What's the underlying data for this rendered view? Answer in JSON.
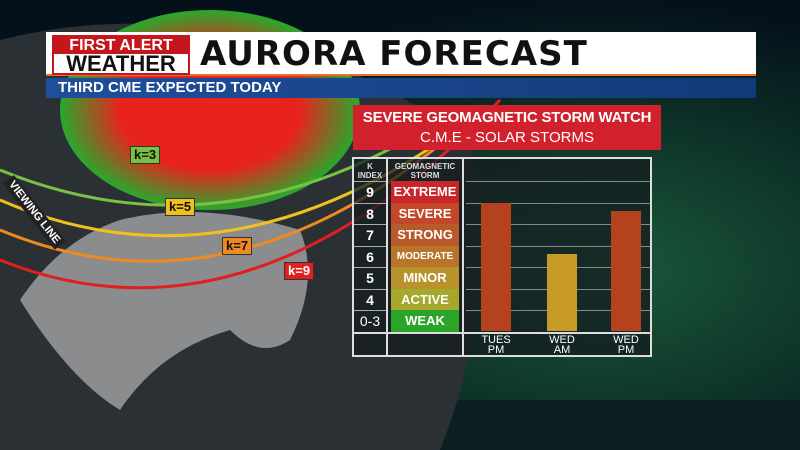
{
  "header": {
    "logo_line1": "FIRST ALERT",
    "logo_line2": "WEATHER",
    "title": "AURORA FORECAST",
    "subtitle": "THIRD CME EXPECTED TODAY"
  },
  "map": {
    "labels": [
      "k=3",
      "k=5",
      "k=7",
      "k=9"
    ],
    "label_colors": [
      "#7ac043",
      "#f0c020",
      "#f08a20",
      "#e02020"
    ],
    "viewing_line": "VIEWING LINE"
  },
  "watch": {
    "title": "SEVERE GEOMAGNETIC STORM WATCH",
    "subtitle": "C.M.E - SOLAR STORMS"
  },
  "table": {
    "k_header": "K INDEX",
    "storm_header": "GEOMAGNETIC STORM",
    "rows": [
      {
        "k": "9",
        "level": "EXTREME",
        "color": "#c9262a"
      },
      {
        "k": "8",
        "level": "SEVERE",
        "color": "#c4472a"
      },
      {
        "k": "7",
        "level": "STRONG",
        "color": "#b85a2a"
      },
      {
        "k": "6",
        "level": "MODERATE",
        "color": "#b8742a"
      },
      {
        "k": "5",
        "level": "MINOR",
        "color": "#b8922a"
      },
      {
        "k": "4",
        "level": "ACTIVE",
        "color": "#a5a82a"
      },
      {
        "k": "0-3",
        "level": "WEAK",
        "color": "#2aa52a"
      }
    ]
  },
  "chart_data": {
    "type": "bar",
    "categories": [
      "TUES PM",
      "WED AM",
      "WED PM"
    ],
    "values": [
      8,
      5.6,
      7.6
    ],
    "ylabel": "K INDEX",
    "colors": [
      "#b5421f",
      "#c79a26",
      "#b5421f"
    ]
  }
}
